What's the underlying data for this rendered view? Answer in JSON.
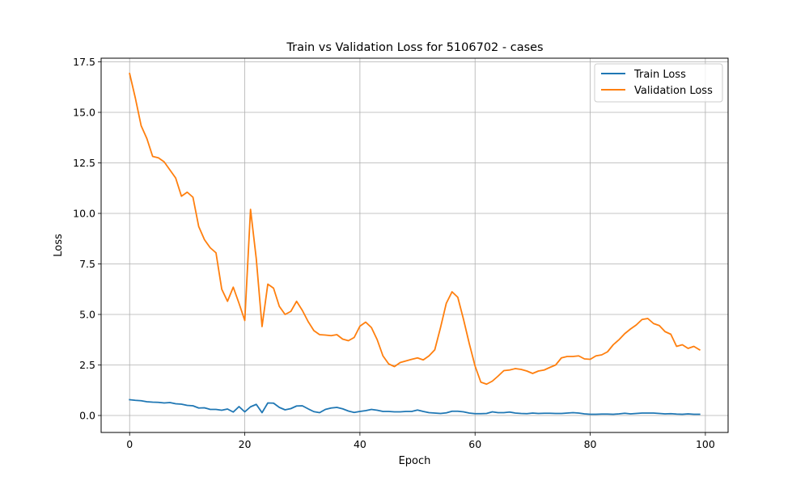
{
  "chart_data": {
    "type": "line",
    "title": "Train vs Validation Loss for 5106702 - cases",
    "xlabel": "Epoch",
    "ylabel": "Loss",
    "xlim": [
      -4.95,
      103.95
    ],
    "ylim": [
      -0.84,
      17.68
    ],
    "xticks": [
      0,
      20,
      40,
      60,
      80,
      100
    ],
    "xtick_labels": [
      "0",
      "20",
      "40",
      "60",
      "80",
      "100"
    ],
    "yticks": [
      0.0,
      2.5,
      5.0,
      7.5,
      10.0,
      12.5,
      15.0,
      17.5
    ],
    "ytick_labels": [
      "0.0",
      "2.5",
      "5.0",
      "7.5",
      "10.0",
      "12.5",
      "15.0",
      "17.5"
    ],
    "grid": true,
    "legend_position": "upper-right",
    "series": [
      {
        "name": "Train Loss",
        "color": "#1f77b4",
        "values": [
          0.78,
          0.75,
          0.73,
          0.68,
          0.66,
          0.65,
          0.62,
          0.64,
          0.58,
          0.56,
          0.5,
          0.48,
          0.37,
          0.38,
          0.3,
          0.3,
          0.26,
          0.32,
          0.17,
          0.44,
          0.18,
          0.43,
          0.55,
          0.14,
          0.62,
          0.61,
          0.4,
          0.28,
          0.34,
          0.47,
          0.48,
          0.33,
          0.19,
          0.14,
          0.3,
          0.37,
          0.4,
          0.33,
          0.22,
          0.15,
          0.2,
          0.24,
          0.3,
          0.26,
          0.2,
          0.2,
          0.18,
          0.18,
          0.2,
          0.2,
          0.27,
          0.2,
          0.14,
          0.12,
          0.1,
          0.13,
          0.21,
          0.21,
          0.18,
          0.12,
          0.09,
          0.09,
          0.1,
          0.18,
          0.14,
          0.14,
          0.17,
          0.12,
          0.1,
          0.09,
          0.12,
          0.1,
          0.11,
          0.11,
          0.1,
          0.1,
          0.12,
          0.14,
          0.12,
          0.08,
          0.06,
          0.06,
          0.07,
          0.07,
          0.06,
          0.08,
          0.11,
          0.08,
          0.1,
          0.12,
          0.12,
          0.12,
          0.1,
          0.08,
          0.09,
          0.07,
          0.06,
          0.08,
          0.06,
          0.06
        ]
      },
      {
        "name": "Validation Loss",
        "color": "#ff7f0e",
        "values": [
          16.92,
          15.7,
          14.34,
          13.7,
          12.82,
          12.75,
          12.55,
          12.15,
          11.75,
          10.85,
          11.05,
          10.8,
          9.35,
          8.7,
          8.3,
          8.05,
          6.25,
          5.65,
          6.35,
          5.55,
          4.7,
          10.2,
          7.75,
          4.4,
          6.5,
          6.3,
          5.4,
          5.0,
          5.15,
          5.65,
          5.2,
          4.65,
          4.2,
          4.0,
          3.98,
          3.95,
          4.0,
          3.78,
          3.7,
          3.86,
          4.42,
          4.62,
          4.35,
          3.75,
          2.95,
          2.55,
          2.42,
          2.62,
          2.7,
          2.78,
          2.85,
          2.75,
          2.95,
          3.25,
          4.35,
          5.55,
          6.12,
          5.85,
          4.75,
          3.55,
          2.45,
          1.65,
          1.55,
          1.7,
          1.95,
          2.22,
          2.25,
          2.32,
          2.28,
          2.2,
          2.08,
          2.2,
          2.25,
          2.38,
          2.5,
          2.85,
          2.92,
          2.92,
          2.95,
          2.8,
          2.78,
          2.95,
          3.0,
          3.15,
          3.5,
          3.75,
          4.05,
          4.28,
          4.48,
          4.75,
          4.8,
          4.55,
          4.45,
          4.15,
          4.02,
          3.42,
          3.5,
          3.32,
          3.42,
          3.25
        ]
      }
    ]
  }
}
